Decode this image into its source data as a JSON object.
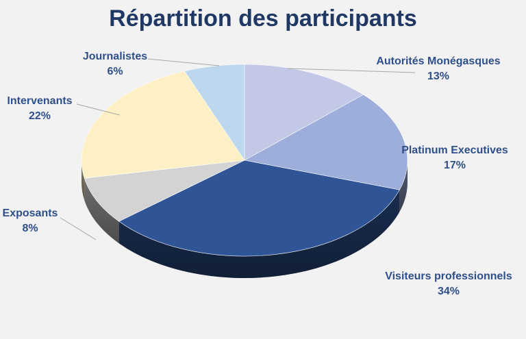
{
  "chart_data": {
    "type": "pie",
    "title": "Répartition des participants",
    "slices": [
      {
        "name": "Autorités Monégasques",
        "label": "13%",
        "value": 13,
        "color": "#c2c8e6"
      },
      {
        "name": "Platinum Executives",
        "label": "17%",
        "value": 17,
        "color": "#9eaedb"
      },
      {
        "name": "Visiteurs professionnels",
        "label": "34%",
        "value": 34,
        "color": "#2f5597"
      },
      {
        "name": "Exposants",
        "label": "8%",
        "value": 8,
        "color": "#d3d3d3"
      },
      {
        "name": "Intervenants",
        "label": "22%",
        "value": 22,
        "color": "#fdf0c4"
      },
      {
        "name": "Journalistes",
        "label": "6%",
        "value": 6,
        "color": "#bdd7ee"
      }
    ],
    "legend": "none"
  }
}
